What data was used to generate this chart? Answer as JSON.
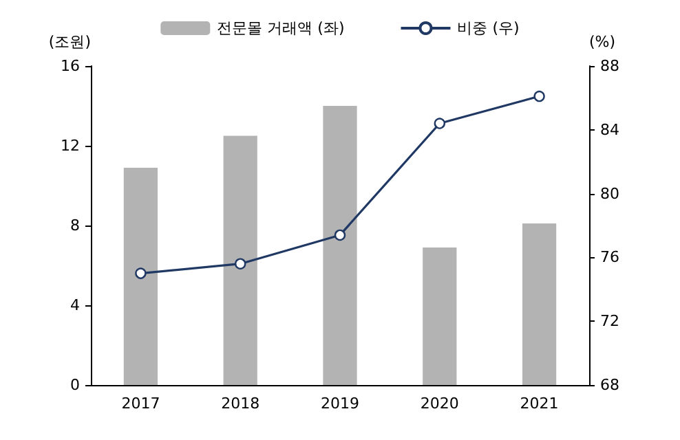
{
  "chart_data": {
    "type": "bar",
    "categories": [
      "2017",
      "2018",
      "2019",
      "2020",
      "2021"
    ],
    "series": [
      {
        "name": "전문몰 거래액 (좌)",
        "color": "#b3b3b3",
        "values": [
          10.9,
          12.5,
          14.0,
          6.9,
          8.1
        ]
      },
      {
        "name": "비중 (우)",
        "type": "line",
        "axis": "y2",
        "color": "#1f3864",
        "values": [
          75.0,
          75.6,
          77.4,
          84.4,
          86.1
        ]
      }
    ],
    "ylabel": "(조원)",
    "y2label": "(%)",
    "ylim": [
      0,
      16
    ],
    "yticks": [
      0,
      4,
      8,
      12,
      16
    ],
    "y2lim": [
      68,
      88
    ],
    "y2ticks": [
      68,
      72,
      76,
      80,
      84,
      88
    ],
    "legend": "top",
    "grid": false,
    "marker": "circle"
  }
}
